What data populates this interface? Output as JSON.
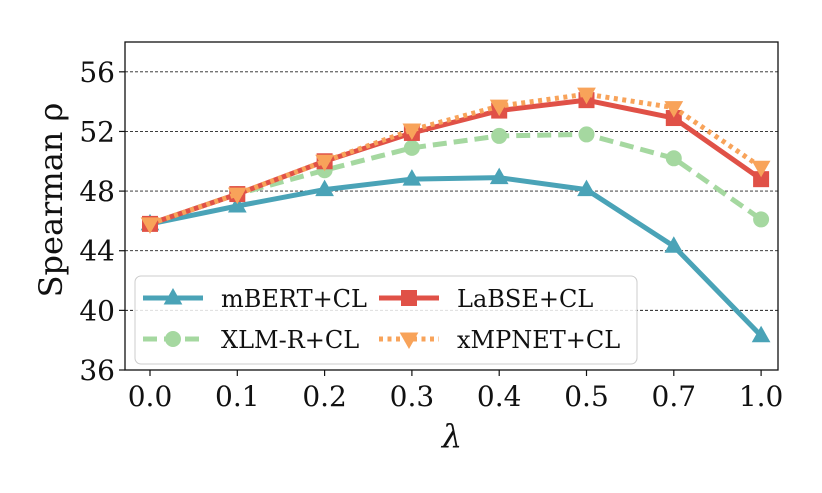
{
  "chart_data": {
    "type": "line",
    "title": "",
    "xlabel": "λ",
    "ylabel": "Spearman ρ",
    "categories": [
      "0.0",
      "0.1",
      "0.2",
      "0.3",
      "0.4",
      "0.5",
      "0.7",
      "1.0"
    ],
    "ylim": [
      36,
      58
    ],
    "yticks": [
      "36",
      "40",
      "44",
      "48",
      "52",
      "56"
    ],
    "grid": "horizontal dashed",
    "legend_position": "lower-left",
    "series": [
      {
        "name": "mBERT+CL",
        "values": [
          45.8,
          47.0,
          48.1,
          48.8,
          48.9,
          48.1,
          44.3,
          38.3
        ],
        "color": "#4aa3b7",
        "marker": "triangle-up",
        "line": "solid"
      },
      {
        "name": "LaBSE+CL",
        "values": [
          45.8,
          47.8,
          50.0,
          51.9,
          53.4,
          54.1,
          52.9,
          48.8
        ],
        "color": "#e05147",
        "marker": "square",
        "line": "solid"
      },
      {
        "name": "XLM-R+CL",
        "values": [
          45.8,
          47.8,
          49.4,
          50.9,
          51.7,
          51.8,
          50.2,
          46.1
        ],
        "color": "#a5d8a0",
        "marker": "circle",
        "line": "dashed"
      },
      {
        "name": "xMPNET+CL",
        "values": [
          45.8,
          47.8,
          50.0,
          52.1,
          53.7,
          54.5,
          53.6,
          49.6
        ],
        "color": "#f8a35a",
        "marker": "triangle-down",
        "line": "dotted"
      }
    ]
  }
}
